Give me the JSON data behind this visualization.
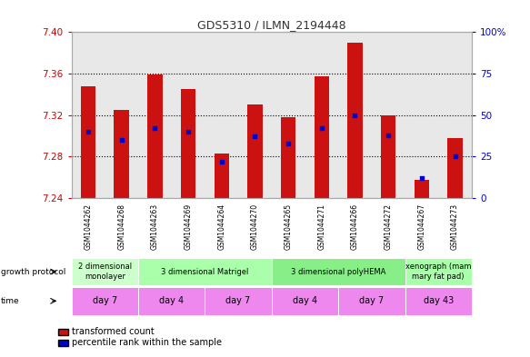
{
  "title": "GDS5310 / ILMN_2194448",
  "samples": [
    "GSM1044262",
    "GSM1044268",
    "GSM1044263",
    "GSM1044269",
    "GSM1044264",
    "GSM1044270",
    "GSM1044265",
    "GSM1044271",
    "GSM1044266",
    "GSM1044272",
    "GSM1044267",
    "GSM1044273"
  ],
  "transformed_counts": [
    7.348,
    7.325,
    7.359,
    7.345,
    7.283,
    7.33,
    7.318,
    7.357,
    7.39,
    7.32,
    7.258,
    7.298
  ],
  "percentile_ranks": [
    40,
    35,
    42,
    40,
    22,
    37,
    33,
    42,
    50,
    38,
    12,
    25
  ],
  "ylim": [
    7.24,
    7.4
  ],
  "yticks": [
    7.24,
    7.28,
    7.32,
    7.36,
    7.4
  ],
  "y2lim": [
    0,
    100
  ],
  "y2ticks": [
    0,
    25,
    50,
    75,
    100
  ],
  "bar_color": "#cc1111",
  "dot_color": "#0000cc",
  "bar_bottom": 7.24,
  "growth_protocol_groups": [
    {
      "label": "2 dimensional\nmonolayer",
      "start": 0,
      "end": 2,
      "color": "#ccffcc"
    },
    {
      "label": "3 dimensional Matrigel",
      "start": 2,
      "end": 6,
      "color": "#aaffaa"
    },
    {
      "label": "3 dimensional polyHEMA",
      "start": 6,
      "end": 10,
      "color": "#88ee88"
    },
    {
      "label": "xenograph (mam\nmary fat pad)",
      "start": 10,
      "end": 12,
      "color": "#aaffaa"
    }
  ],
  "time_groups": [
    {
      "label": "day 7",
      "start": 0,
      "end": 2,
      "color": "#ee88ee"
    },
    {
      "label": "day 4",
      "start": 2,
      "end": 4,
      "color": "#ee88ee"
    },
    {
      "label": "day 7",
      "start": 4,
      "end": 6,
      "color": "#ee88ee"
    },
    {
      "label": "day 4",
      "start": 6,
      "end": 8,
      "color": "#ee88ee"
    },
    {
      "label": "day 7",
      "start": 8,
      "end": 10,
      "color": "#ee88ee"
    },
    {
      "label": "day 43",
      "start": 10,
      "end": 12,
      "color": "#ee88ee"
    }
  ],
  "legend_red_label": "transformed count",
  "legend_blue_label": "percentile rank within the sample",
  "xlabel_growth": "growth protocol",
  "xlabel_time": "time",
  "left_axis_color": "#cc0000",
  "right_axis_color": "#0000cc",
  "plot_bg_color": "#e8e8e8",
  "n_samples": 12
}
